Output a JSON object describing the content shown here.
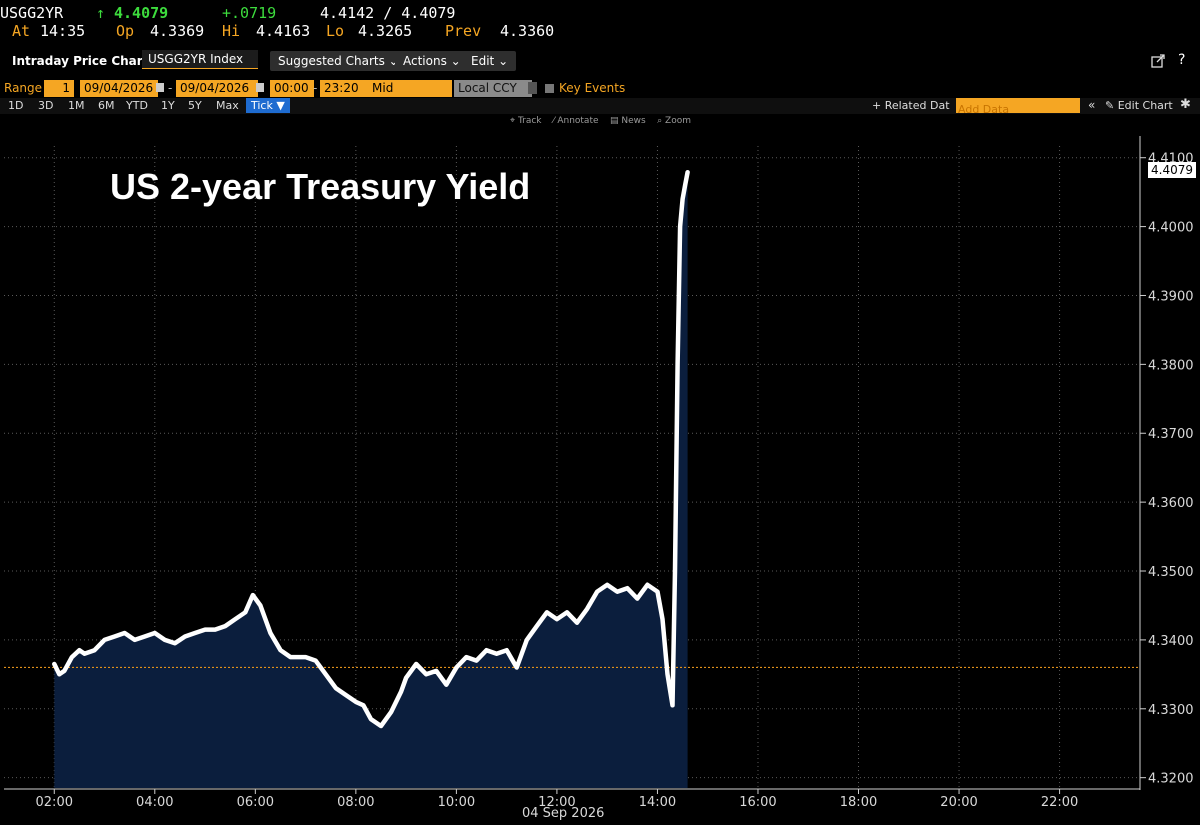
{
  "quote": {
    "ticker": "USGG2YR",
    "arrow": "↑",
    "last": "4.4079",
    "change": "+.0719",
    "bid_ask": "4.4142 / 4.4079",
    "at_label": "At",
    "at_time": "14:35",
    "op_label": "Op",
    "op_value": "4.3369",
    "hi_label": "Hi",
    "hi_value": "4.4163",
    "lo_label": "Lo",
    "lo_value": "4.3265",
    "prev_label": "Prev",
    "prev_value": "4.3360"
  },
  "toolbar": {
    "title": "Intraday Price Chart",
    "security": "USGG2YR Index",
    "suggested": "Suggested Charts",
    "actions": "Actions",
    "edit": "Edit",
    "chevron": "⌄"
  },
  "range": {
    "label": "Range",
    "count": "1",
    "start_date": "09/04/2026",
    "dash": "-",
    "end_date": "09/04/2026",
    "start_time": "00:00",
    "end_time": "23:20",
    "field": "Mid",
    "currency": "Local CCY",
    "key_events": "Key Events"
  },
  "periods": [
    "1D",
    "3D",
    "1M",
    "6M",
    "YTD",
    "1Y",
    "5Y",
    "Max"
  ],
  "active_period": "Tick ▼",
  "related": {
    "related_label": "+ Related Dat",
    "add_data_placeholder": "Add Data",
    "edit_chart": "Edit Chart"
  },
  "chart_tools": {
    "track": "Track",
    "annotate": "Annotate",
    "news": "News",
    "zoom": "Zoom"
  },
  "chart_data": {
    "type": "area",
    "title": "US 2-year Treasury Yield",
    "xlabel": "04 Sep 2026",
    "ylabel": "",
    "x_ticks": [
      "02:00",
      "04:00",
      "06:00",
      "08:00",
      "10:00",
      "12:00",
      "14:00",
      "16:00",
      "18:00",
      "20:00",
      "22:00"
    ],
    "y_ticks": [
      "4.3200",
      "4.3300",
      "4.3400",
      "4.3500",
      "4.3600",
      "4.3700",
      "4.3800",
      "4.3900",
      "4.4000",
      "4.4100"
    ],
    "ylim": [
      4.3185,
      4.4117
    ],
    "xlim_hours": [
      1.0,
      23.6
    ],
    "last_price_tag": "4.4079",
    "prev_close_line": 4.336,
    "grid": true,
    "series": [
      {
        "x_hours": [
          2.0,
          2.1,
          2.2,
          2.35,
          2.5,
          2.6,
          2.8,
          3.0,
          3.2,
          3.4,
          3.6,
          3.8,
          4.0,
          4.2,
          4.4,
          4.6,
          4.8,
          5.0,
          5.2,
          5.4,
          5.6,
          5.8,
          5.95,
          6.1,
          6.3,
          6.5,
          6.7,
          7.0,
          7.2,
          7.4,
          7.6,
          7.8,
          8.0,
          8.15,
          8.3,
          8.5,
          8.7,
          8.9,
          9.0,
          9.2,
          9.4,
          9.6,
          9.8,
          10.0,
          10.2,
          10.4,
          10.6,
          10.8,
          11.0,
          11.2,
          11.4,
          11.6,
          11.8,
          12.0,
          12.2,
          12.4,
          12.6,
          12.8,
          13.0,
          13.2,
          13.4,
          13.6,
          13.8,
          14.0,
          14.1,
          14.2,
          14.3,
          14.35,
          14.4,
          14.45,
          14.5,
          14.55,
          14.6
        ],
        "values": [
          4.3365,
          4.335,
          4.3355,
          4.3375,
          4.3385,
          4.338,
          4.3385,
          4.34,
          4.3405,
          4.341,
          4.34,
          4.3405,
          4.341,
          4.34,
          4.3395,
          4.3405,
          4.341,
          4.3415,
          4.3415,
          4.342,
          4.343,
          4.344,
          4.3465,
          4.345,
          4.341,
          4.3385,
          4.3375,
          4.3375,
          4.337,
          4.335,
          4.333,
          4.332,
          4.331,
          4.3305,
          4.3285,
          4.3275,
          4.3295,
          4.3325,
          4.3345,
          4.3365,
          4.335,
          4.3355,
          4.3335,
          4.336,
          4.3375,
          4.337,
          4.3385,
          4.338,
          4.3385,
          4.336,
          4.34,
          4.342,
          4.344,
          4.343,
          4.344,
          4.3425,
          4.3445,
          4.347,
          4.348,
          4.347,
          4.3475,
          4.346,
          4.348,
          4.347,
          4.343,
          4.335,
          4.3305,
          4.35,
          4.38,
          4.4,
          4.404,
          4.406,
          4.4079
        ]
      }
    ]
  },
  "colors": {
    "fill": "#0b1e3d",
    "line": "#ffffff",
    "prev_line": "#e0901a",
    "grid": "#5a5a5a",
    "accent": "#f5a623"
  },
  "icons": [
    "export-icon",
    "help-icon",
    "settings-icon",
    "collapse-icon",
    "pencil-icon"
  ]
}
